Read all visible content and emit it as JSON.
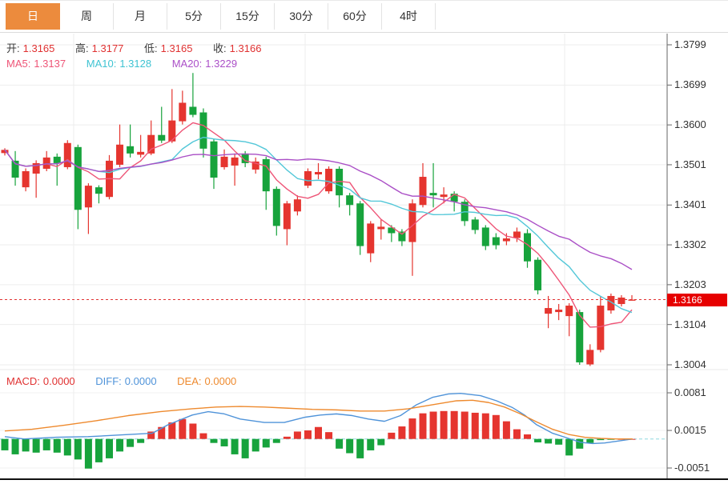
{
  "tab_bar": {
    "tabs": [
      {
        "label": "日",
        "active": true
      },
      {
        "label": "周",
        "active": false
      },
      {
        "label": "月",
        "active": false
      },
      {
        "label": "5分",
        "active": false
      },
      {
        "label": "15分",
        "active": false
      },
      {
        "label": "30分",
        "active": false
      },
      {
        "label": "60分",
        "active": false
      },
      {
        "label": "4时",
        "active": false
      }
    ]
  },
  "main_chart": {
    "ohlc_row": {
      "open_label": "开:",
      "open_value": "1.3165",
      "high_label": "高:",
      "high_value": "1.3177",
      "low_label": "低:",
      "low_value": "1.3165",
      "close_label": "收:",
      "close_value": "1.3166"
    },
    "ma_row": {
      "ma5_label": "MA5:",
      "ma5_value": "1.3137",
      "ma10_label": "MA10:",
      "ma10_value": "1.3128",
      "ma20_label": "MA20:",
      "ma20_value": "1.3229"
    },
    "price_axis_labels": [
      "1.3799",
      "1.3699",
      "1.3600",
      "1.3501",
      "1.3401",
      "1.3302",
      "1.3203",
      "1.3104",
      "1.3004"
    ],
    "current_price_tag": "1.3166"
  },
  "macd_panel": {
    "row": {
      "macd_label": "MACD:",
      "macd_value": "0.0000",
      "diff_label": "DIFF:",
      "diff_value": "0.0000",
      "dea_label": "DEA:",
      "dea_value": "0.0000"
    },
    "axis_labels": [
      "0.0081",
      "0.0015",
      "-0.0051"
    ]
  },
  "colors": {
    "up": "#e5352f",
    "down": "#17a33c",
    "ma5": "#ee5577",
    "ma10": "#52c7d8",
    "ma20": "#aa4fc6",
    "diff": "#4f93d9",
    "dea": "#ee8a2e",
    "tab_accent": "#ec8b3d",
    "dotted_price_line": "#e03131",
    "tag_bg": "#e60000",
    "grid": "#ededed",
    "axis": "#666666",
    "zero_dash": "#8fd8e0"
  },
  "chart_data": {
    "type": "candlestick+macd",
    "title": "",
    "price_axis": {
      "min": 1.3004,
      "max": 1.3799,
      "ticks": [
        1.3799,
        1.3699,
        1.36,
        1.3501,
        1.3401,
        1.3302,
        1.3203,
        1.3104,
        1.3004
      ]
    },
    "current_price": 1.3166,
    "last_bar": {
      "open": 1.3165,
      "high": 1.3177,
      "low": 1.3165,
      "close": 1.3166
    },
    "moving_average_periods": {
      "ma5": 5,
      "ma10": 10,
      "ma20": 20
    },
    "moving_average_latest": {
      "ma5": 1.3137,
      "ma10": 1.3128,
      "ma20": 1.3229
    },
    "vertical_gridlines_x": [
      92,
      381,
      705
    ],
    "candles_ohlc": [
      [
        1.353,
        1.3542,
        1.3524,
        1.3538
      ],
      [
        1.3511,
        1.3535,
        1.3449,
        1.3469
      ],
      [
        1.3445,
        1.3492,
        1.3435,
        1.3485
      ],
      [
        1.3479,
        1.3512,
        1.3419,
        1.3505
      ],
      [
        1.3491,
        1.3535,
        1.3485,
        1.3519
      ],
      [
        1.3521,
        1.3529,
        1.3449,
        1.3505
      ],
      [
        1.3495,
        1.3562,
        1.349,
        1.3555
      ],
      [
        1.3545,
        1.3551,
        1.3341,
        1.3389
      ],
      [
        1.3395,
        1.3455,
        1.3329,
        1.3449
      ],
      [
        1.3445,
        1.345,
        1.3405,
        1.3429
      ],
      [
        1.3421,
        1.3525,
        1.3415,
        1.3511
      ],
      [
        1.3501,
        1.3601,
        1.3495,
        1.3551
      ],
      [
        1.3547,
        1.3601,
        1.3519,
        1.3529
      ],
      [
        1.3526,
        1.3575,
        1.3519,
        1.3533
      ],
      [
        1.3529,
        1.3611,
        1.3525,
        1.3575
      ],
      [
        1.3575,
        1.3645,
        1.3555,
        1.3561
      ],
      [
        1.3559,
        1.3689,
        1.3555,
        1.3611
      ],
      [
        1.3609,
        1.3685,
        1.3601,
        1.3655
      ],
      [
        1.3645,
        1.3729,
        1.3619,
        1.3625
      ],
      [
        1.3631,
        1.3641,
        1.3519,
        1.3541
      ],
      [
        1.3559,
        1.3565,
        1.3441,
        1.3469
      ],
      [
        1.3495,
        1.3539,
        1.3489,
        1.3521
      ],
      [
        1.3499,
        1.3529,
        1.3449,
        1.3519
      ],
      [
        1.3529,
        1.3535,
        1.3495,
        1.3505
      ],
      [
        1.3489,
        1.3519,
        1.3479,
        1.3509
      ],
      [
        1.3515,
        1.3521,
        1.3389,
        1.3435
      ],
      [
        1.3441,
        1.3447,
        1.3325,
        1.3349
      ],
      [
        1.3341,
        1.3411,
        1.3301,
        1.3405
      ],
      [
        1.3385,
        1.3425,
        1.3375,
        1.3415
      ],
      [
        1.3449,
        1.3492,
        1.3443,
        1.3485
      ],
      [
        1.3477,
        1.3505,
        1.3465,
        1.3483
      ],
      [
        1.3435,
        1.3497,
        1.3429,
        1.3491
      ],
      [
        1.3491,
        1.3497,
        1.3395,
        1.3425
      ],
      [
        1.3425,
        1.3431,
        1.3375,
        1.3401
      ],
      [
        1.3405,
        1.3411,
        1.3277,
        1.3299
      ],
      [
        1.3281,
        1.3361,
        1.3259,
        1.3355
      ],
      [
        1.3341,
        1.3365,
        1.3315,
        1.3347
      ],
      [
        1.3345,
        1.3351,
        1.3309,
        1.3331
      ],
      [
        1.3335,
        1.3341,
        1.3299,
        1.3311
      ],
      [
        1.3309,
        1.3415,
        1.3225,
        1.3405
      ],
      [
        1.3401,
        1.3505,
        1.3395,
        1.3471
      ],
      [
        1.3431,
        1.3505,
        1.3395,
        1.3425
      ],
      [
        1.3421,
        1.3445,
        1.3405,
        1.3427
      ],
      [
        1.3429,
        1.3435,
        1.3385,
        1.3409
      ],
      [
        1.3409,
        1.3415,
        1.3349,
        1.3361
      ],
      [
        1.3365,
        1.3371,
        1.3329,
        1.3339
      ],
      [
        1.3345,
        1.3351,
        1.3289,
        1.3299
      ],
      [
        1.3321,
        1.3331,
        1.3291,
        1.3301
      ],
      [
        1.3311,
        1.3331,
        1.3301,
        1.3318
      ],
      [
        1.3319,
        1.3345,
        1.3309,
        1.3335
      ],
      [
        1.3331,
        1.3341,
        1.3245,
        1.3261
      ],
      [
        1.3265,
        1.3271,
        1.3179,
        1.3189
      ],
      [
        1.3131,
        1.3175,
        1.3095,
        1.3145
      ],
      [
        1.3135,
        1.3155,
        1.3115,
        1.3141
      ],
      [
        1.3125,
        1.3157,
        1.3075,
        1.3151
      ],
      [
        1.3135,
        1.3141,
        1.3004,
        1.301
      ],
      [
        1.3005,
        1.3055,
        1.3001,
        1.3041
      ],
      [
        1.3041,
        1.3175,
        1.3035,
        1.3151
      ],
      [
        1.3139,
        1.3181,
        1.3131,
        1.3175
      ],
      [
        1.3155,
        1.3177,
        1.3149,
        1.3171
      ],
      [
        1.3165,
        1.3177,
        1.3165,
        1.3166
      ]
    ],
    "macd": {
      "axis_ticks": [
        0.0081,
        0.0015,
        -0.0051
      ],
      "histogram": [
        -0.002,
        -0.0027,
        -0.0022,
        -0.0024,
        -0.002,
        -0.0024,
        -0.0029,
        -0.0036,
        -0.0052,
        -0.0041,
        -0.0034,
        -0.0022,
        -0.0014,
        -0.0007,
        0.0013,
        0.0021,
        0.0029,
        0.0035,
        0.0027,
        0.001,
        -0.0007,
        -0.0013,
        -0.0027,
        -0.0034,
        -0.0022,
        -0.0015,
        -0.0007,
        0.0004,
        0.0013,
        0.0015,
        0.0021,
        0.0012,
        -0.0017,
        -0.0025,
        -0.0034,
        -0.002,
        -0.0011,
        0.0011,
        0.0022,
        0.0036,
        0.0045,
        0.0048,
        0.0049,
        0.0049,
        0.0048,
        0.0046,
        0.0045,
        0.0042,
        0.0031,
        0.0017,
        0.0008,
        -0.0006,
        -0.0008,
        -0.001,
        -0.0029,
        -0.0017,
        -0.0007,
        -0.0002,
        -0.0001,
        0.0,
        0.0
      ],
      "diff_points": [
        [
          6,
          0.0004
        ],
        [
          30,
          0.0
        ],
        [
          70,
          0.0003
        ],
        [
          110,
          0.0004
        ],
        [
          150,
          0.0007
        ],
        [
          190,
          0.001
        ],
        [
          210,
          0.0025
        ],
        [
          240,
          0.0042
        ],
        [
          260,
          0.0048
        ],
        [
          280,
          0.0044
        ],
        [
          300,
          0.0035
        ],
        [
          330,
          0.0029
        ],
        [
          355,
          0.0029
        ],
        [
          380,
          0.0038
        ],
        [
          400,
          0.0042
        ],
        [
          420,
          0.0044
        ],
        [
          440,
          0.0041
        ],
        [
          460,
          0.0035
        ],
        [
          480,
          0.0031
        ],
        [
          500,
          0.0041
        ],
        [
          520,
          0.006
        ],
        [
          540,
          0.0073
        ],
        [
          560,
          0.0079
        ],
        [
          575,
          0.008
        ],
        [
          600,
          0.0076
        ],
        [
          620,
          0.0067
        ],
        [
          640,
          0.0055
        ],
        [
          655,
          0.0042
        ],
        [
          670,
          0.0025
        ],
        [
          690,
          0.001
        ],
        [
          710,
          0.0001
        ],
        [
          725,
          -0.0006
        ],
        [
          740,
          -0.0008
        ],
        [
          755,
          -0.0007
        ],
        [
          770,
          -0.0004
        ],
        [
          790,
          0.0
        ]
      ],
      "dea_points": [
        [
          6,
          0.0014
        ],
        [
          40,
          0.0017
        ],
        [
          80,
          0.0024
        ],
        [
          120,
          0.0032
        ],
        [
          160,
          0.0041
        ],
        [
          200,
          0.0048
        ],
        [
          240,
          0.0053
        ],
        [
          270,
          0.0056
        ],
        [
          300,
          0.0057
        ],
        [
          330,
          0.0056
        ],
        [
          360,
          0.0054
        ],
        [
          390,
          0.0052
        ],
        [
          420,
          0.0051
        ],
        [
          450,
          0.0049
        ],
        [
          480,
          0.0049
        ],
        [
          510,
          0.0053
        ],
        [
          540,
          0.006
        ],
        [
          570,
          0.0067
        ],
        [
          590,
          0.0068
        ],
        [
          610,
          0.0064
        ],
        [
          630,
          0.0056
        ],
        [
          650,
          0.0044
        ],
        [
          670,
          0.003
        ],
        [
          690,
          0.0017
        ],
        [
          710,
          0.0008
        ],
        [
          730,
          0.0003
        ],
        [
          750,
          0.0001
        ],
        [
          770,
          0.0
        ],
        [
          790,
          0.0
        ]
      ]
    }
  }
}
